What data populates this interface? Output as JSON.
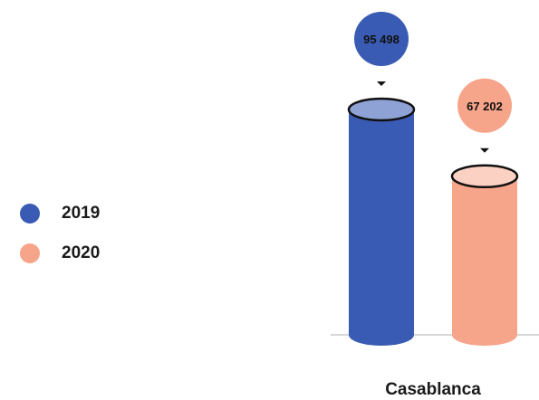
{
  "chart_data": {
    "type": "bar",
    "categories": [
      "Casablanca"
    ],
    "series": [
      {
        "name": "2019",
        "values": [
          95498
        ],
        "label": "95 498",
        "color": "#3a5bb3",
        "top_color": "#8ea2d6",
        "label_text_color": "#111111"
      },
      {
        "name": "2020",
        "values": [
          67202
        ],
        "label": "67 202",
        "color": "#f6a58b",
        "top_color": "#fbd1c3",
        "label_text_color": "#111111"
      }
    ],
    "legend_position": "left",
    "grid": false
  }
}
